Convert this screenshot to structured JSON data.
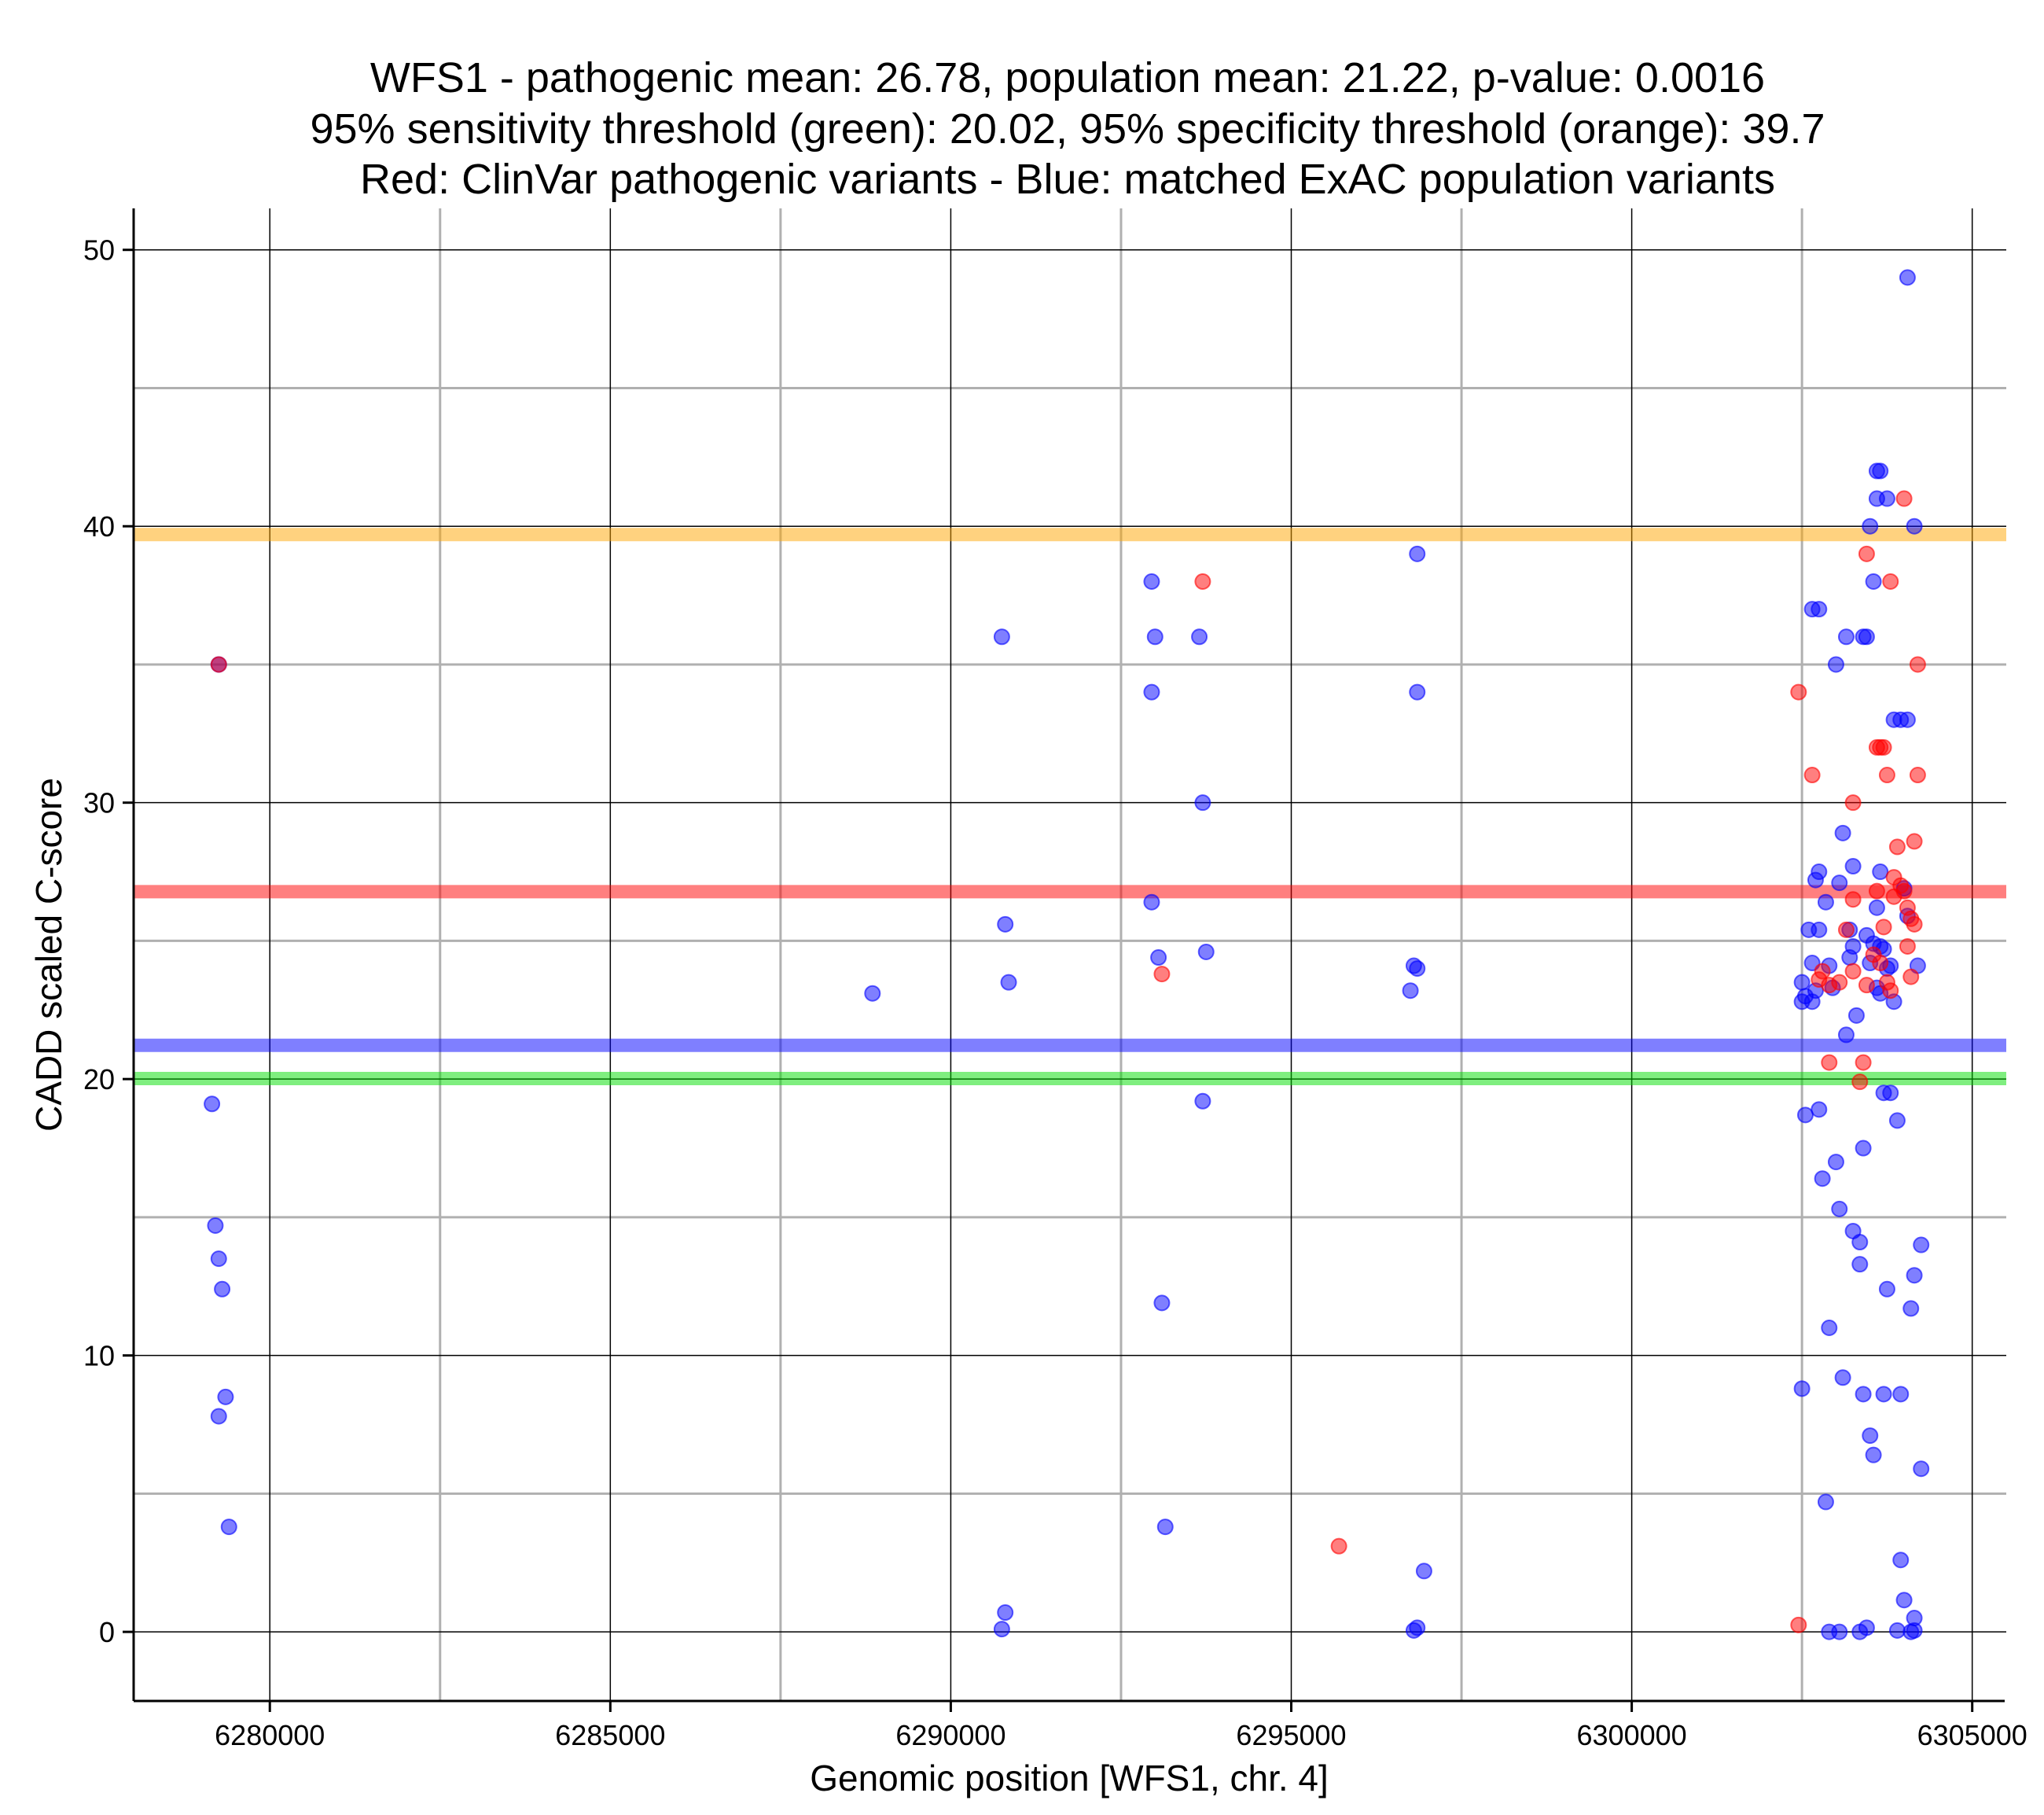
{
  "chart_data": {
    "type": "scatter",
    "title_lines": [
      "WFS1 - pathogenic mean: 26.78, population mean: 21.22, p-value: 0.0016",
      "95% sensitivity threshold (green): 20.02, 95% specificity threshold (orange): 39.7",
      "Red: ClinVar pathogenic variants - Blue: matched ExAC population variants"
    ],
    "xlabel": "Genomic position [WFS1, chr. 4]",
    "ylabel": "CADD scaled C-score",
    "xlim": [
      6278000,
      6305500
    ],
    "ylim": [
      -2.5,
      51.5
    ],
    "x_ticks": [
      6280000,
      6285000,
      6290000,
      6295000,
      6300000,
      6305000
    ],
    "y_ticks": [
      0,
      10,
      20,
      30,
      40,
      50
    ],
    "x_minor_grid": [
      6282500,
      6287500,
      6292500,
      6297500,
      6302500
    ],
    "y_minor_grid": [
      5,
      15,
      25,
      35,
      45
    ],
    "grid": true,
    "colors": {
      "pathogenic": "#ff0000",
      "population": "#0000ff",
      "pathogenic_mean": "#ff0000",
      "population_mean": "#0000ff",
      "sensitivity": "#00dd00",
      "specificity": "#ffa500"
    },
    "hlines": [
      {
        "name": "specificity threshold",
        "y": 39.7,
        "color": "#ffa500"
      },
      {
        "name": "pathogenic mean",
        "y": 26.78,
        "color": "#ff0000"
      },
      {
        "name": "population mean",
        "y": 21.22,
        "color": "#0000ff"
      },
      {
        "name": "sensitivity threshold",
        "y": 20.02,
        "color": "#00dd00"
      }
    ],
    "series": [
      {
        "name": "ClinVar pathogenic variants",
        "color": "#ff0000",
        "points": [
          [
            6279250,
            35.0
          ],
          [
            6293100,
            23.8
          ],
          [
            6293700,
            38.0
          ],
          [
            6295700,
            3.1
          ],
          [
            6302450,
            34.0
          ],
          [
            6302450,
            0.25
          ],
          [
            6302650,
            31.0
          ],
          [
            6302750,
            23.6
          ],
          [
            6302800,
            23.9
          ],
          [
            6302900,
            20.6
          ],
          [
            6302900,
            23.4
          ],
          [
            6303050,
            23.5
          ],
          [
            6303150,
            25.4
          ],
          [
            6303250,
            30.0
          ],
          [
            6303250,
            26.5
          ],
          [
            6303250,
            23.9
          ],
          [
            6303350,
            19.9
          ],
          [
            6303400,
            20.6
          ],
          [
            6303450,
            23.4
          ],
          [
            6303450,
            39.0
          ],
          [
            6303550,
            24.5
          ],
          [
            6303600,
            32.0
          ],
          [
            6303600,
            26.8
          ],
          [
            6303650,
            24.2
          ],
          [
            6303650,
            32.0
          ],
          [
            6303700,
            25.5
          ],
          [
            6303700,
            32.0
          ],
          [
            6303750,
            31.0
          ],
          [
            6303750,
            23.5
          ],
          [
            6303800,
            38.0
          ],
          [
            6303800,
            23.2
          ],
          [
            6303850,
            27.3
          ],
          [
            6303850,
            26.6
          ],
          [
            6303900,
            28.4
          ],
          [
            6303950,
            27.0
          ],
          [
            6304000,
            41.0
          ],
          [
            6304000,
            26.8
          ],
          [
            6304050,
            26.2
          ],
          [
            6304050,
            24.8
          ],
          [
            6304100,
            25.8
          ],
          [
            6304100,
            23.7
          ],
          [
            6304150,
            25.6
          ],
          [
            6304150,
            28.6
          ],
          [
            6304200,
            31.0
          ],
          [
            6304200,
            35.0
          ]
        ]
      },
      {
        "name": "matched ExAC population variants",
        "color": "#0000ff",
        "points": [
          [
            6279250,
            35.0
          ],
          [
            6279150,
            19.1
          ],
          [
            6279200,
            14.7
          ],
          [
            6279250,
            13.5
          ],
          [
            6279300,
            12.4
          ],
          [
            6279250,
            7.8
          ],
          [
            6279350,
            8.5
          ],
          [
            6279400,
            3.8
          ],
          [
            6288850,
            23.1
          ],
          [
            6290750,
            36.0
          ],
          [
            6290800,
            25.6
          ],
          [
            6290850,
            23.5
          ],
          [
            6290800,
            0.7
          ],
          [
            6290750,
            0.1
          ],
          [
            6292950,
            38.0
          ],
          [
            6293000,
            36.0
          ],
          [
            6292950,
            34.0
          ],
          [
            6292950,
            26.4
          ],
          [
            6293050,
            24.4
          ],
          [
            6293100,
            11.9
          ],
          [
            6293150,
            3.8
          ],
          [
            6293650,
            36.0
          ],
          [
            6293700,
            30.0
          ],
          [
            6293750,
            24.6
          ],
          [
            6293700,
            19.2
          ],
          [
            6296850,
            39.0
          ],
          [
            6296850,
            34.0
          ],
          [
            6296800,
            24.1
          ],
          [
            6296850,
            24.0
          ],
          [
            6296750,
            23.2
          ],
          [
            6296800,
            0.05
          ],
          [
            6296850,
            0.15
          ],
          [
            6296950,
            2.2
          ],
          [
            6302500,
            23.5
          ],
          [
            6302500,
            22.8
          ],
          [
            6302550,
            23.0
          ],
          [
            6302550,
            18.7
          ],
          [
            6302500,
            8.8
          ],
          [
            6302600,
            25.4
          ],
          [
            6302650,
            24.2
          ],
          [
            6302650,
            37.0
          ],
          [
            6302650,
            22.8
          ],
          [
            6302700,
            27.2
          ],
          [
            6302700,
            23.2
          ],
          [
            6302750,
            37.0
          ],
          [
            6302750,
            27.5
          ],
          [
            6302750,
            25.4
          ],
          [
            6302750,
            18.9
          ],
          [
            6302800,
            16.4
          ],
          [
            6302850,
            26.4
          ],
          [
            6302850,
            4.7
          ],
          [
            6302900,
            24.1
          ],
          [
            6302900,
            11.0
          ],
          [
            6302900,
            0.0
          ],
          [
            6302950,
            23.3
          ],
          [
            6303000,
            35.0
          ],
          [
            6303000,
            17.0
          ],
          [
            6303050,
            27.1
          ],
          [
            6303050,
            15.3
          ],
          [
            6303050,
            0.0
          ],
          [
            6303100,
            28.9
          ],
          [
            6303100,
            9.2
          ],
          [
            6303150,
            36.0
          ],
          [
            6303150,
            21.6
          ],
          [
            6303200,
            25.4
          ],
          [
            6303200,
            24.4
          ],
          [
            6303250,
            27.7
          ],
          [
            6303250,
            24.8
          ],
          [
            6303250,
            14.5
          ],
          [
            6303300,
            22.3
          ],
          [
            6303350,
            14.1
          ],
          [
            6303350,
            13.3
          ],
          [
            6303350,
            0.0
          ],
          [
            6303400,
            36.0
          ],
          [
            6303400,
            17.5
          ],
          [
            6303400,
            8.6
          ],
          [
            6303450,
            36.0
          ],
          [
            6303450,
            25.2
          ],
          [
            6303450,
            0.15
          ],
          [
            6303500,
            40.0
          ],
          [
            6303500,
            24.2
          ],
          [
            6303500,
            7.1
          ],
          [
            6303550,
            38.0
          ],
          [
            6303550,
            24.9
          ],
          [
            6303550,
            6.4
          ],
          [
            6303600,
            42.0
          ],
          [
            6303600,
            41.0
          ],
          [
            6303600,
            26.2
          ],
          [
            6303600,
            23.3
          ],
          [
            6303650,
            42.0
          ],
          [
            6303650,
            27.5
          ],
          [
            6303650,
            24.8
          ],
          [
            6303650,
            23.1
          ],
          [
            6303700,
            24.7
          ],
          [
            6303700,
            19.5
          ],
          [
            6303700,
            8.6
          ],
          [
            6303750,
            41.0
          ],
          [
            6303750,
            24.0
          ],
          [
            6303750,
            12.4
          ],
          [
            6303800,
            24.1
          ],
          [
            6303800,
            19.5
          ],
          [
            6303850,
            33.0
          ],
          [
            6303850,
            22.8
          ],
          [
            6303900,
            18.5
          ],
          [
            6303900,
            0.05
          ],
          [
            6303950,
            33.0
          ],
          [
            6303950,
            8.6
          ],
          [
            6303950,
            2.6
          ],
          [
            6304000,
            26.9
          ],
          [
            6304000,
            1.15
          ],
          [
            6304050,
            49.0
          ],
          [
            6304050,
            33.0
          ],
          [
            6304050,
            25.9
          ],
          [
            6304100,
            11.7
          ],
          [
            6304100,
            0.0
          ],
          [
            6304150,
            40.0
          ],
          [
            6304150,
            12.9
          ],
          [
            6304150,
            0.5
          ],
          [
            6304150,
            0.05
          ],
          [
            6304200,
            24.1
          ],
          [
            6304250,
            14.0
          ],
          [
            6304250,
            5.9
          ]
        ]
      }
    ]
  }
}
